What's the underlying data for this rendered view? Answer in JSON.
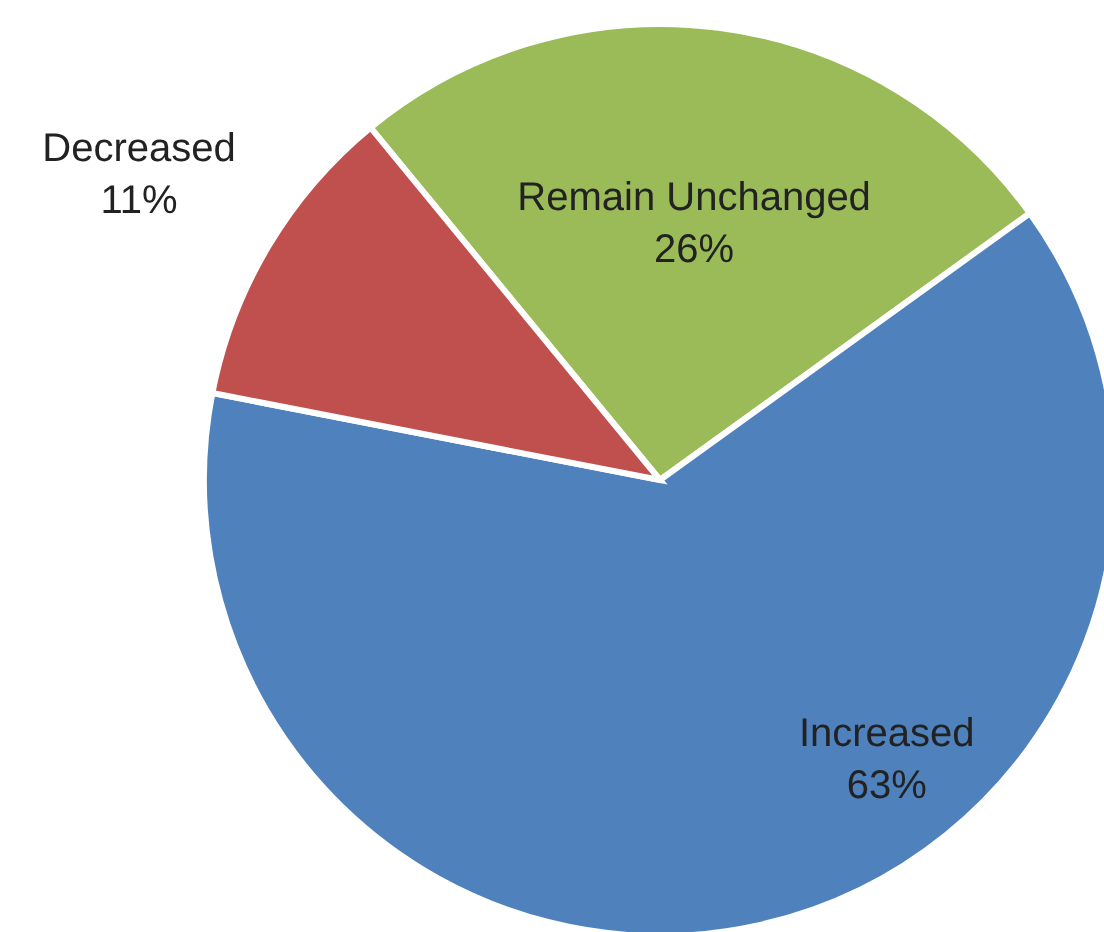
{
  "chart_data": {
    "type": "pie",
    "categories": [
      "Remain Unchanged",
      "Increased",
      "Decreased"
    ],
    "values": [
      26,
      63,
      11
    ],
    "colors": [
      "#9bbb59",
      "#4f81bd",
      "#c0504d"
    ],
    "value_labels": [
      "26%",
      "63%",
      "11%"
    ]
  }
}
